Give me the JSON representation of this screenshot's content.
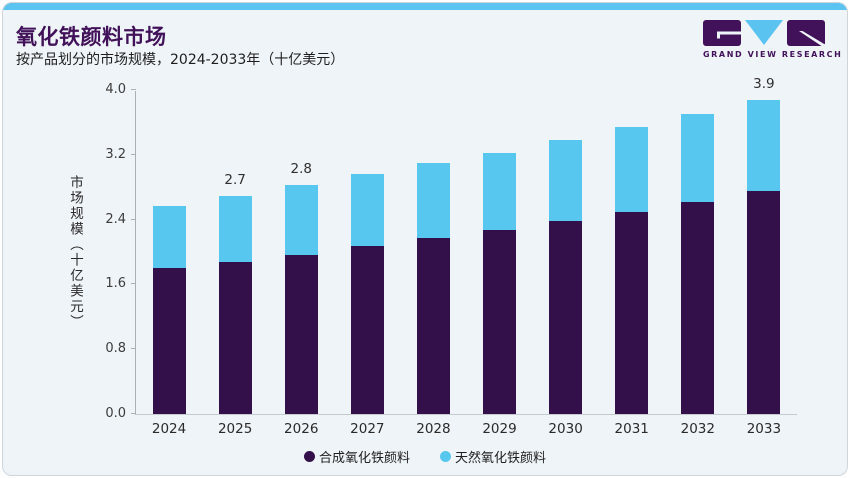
{
  "header": {
    "title": "氧化铁颜料市场",
    "subtitle": "按产品划分的市场规模，2024-2033年（十亿美元）"
  },
  "logo": {
    "text": "GRAND VIEW RESEARCH"
  },
  "colors": {
    "accent_bar": "#5AC3EF",
    "title": "#41125A",
    "synthetic": "#331049",
    "natural": "#58C7F0",
    "card_bg": "#EFF4F9"
  },
  "chart_data": {
    "type": "bar",
    "stacked": true,
    "title": "氧化铁颜料市场",
    "subtitle": "按产品划分的市场规模，2024-2033年（十亿美元）",
    "categories": [
      "2024",
      "2025",
      "2026",
      "2027",
      "2028",
      "2029",
      "2030",
      "2031",
      "2032",
      "2033"
    ],
    "series": [
      {
        "name": "合成氧化铁颜料",
        "color": "#331049",
        "values": [
          1.8,
          1.88,
          1.96,
          2.07,
          2.17,
          2.27,
          2.38,
          2.49,
          2.62,
          2.75
        ]
      },
      {
        "name": "天然氧化铁颜料",
        "color": "#58C7F0",
        "values": [
          0.77,
          0.81,
          0.87,
          0.89,
          0.93,
          0.95,
          1.0,
          1.05,
          1.08,
          1.13
        ]
      }
    ],
    "totals": [
      2.57,
      2.69,
      2.83,
      2.96,
      3.1,
      3.22,
      3.38,
      3.54,
      3.7,
      3.88
    ],
    "bar_labels": [
      "",
      "2.7",
      "2.8",
      "",
      "",
      "",
      "",
      "",
      "",
      "3.9"
    ],
    "ylabel": "市场规模（十亿美元）",
    "yticks": [
      "0.0",
      "0.8",
      "1.6",
      "2.4",
      "3.2",
      "4.0"
    ],
    "ylim": [
      0,
      4.0
    ],
    "grid": false,
    "legend_position": "bottom"
  }
}
